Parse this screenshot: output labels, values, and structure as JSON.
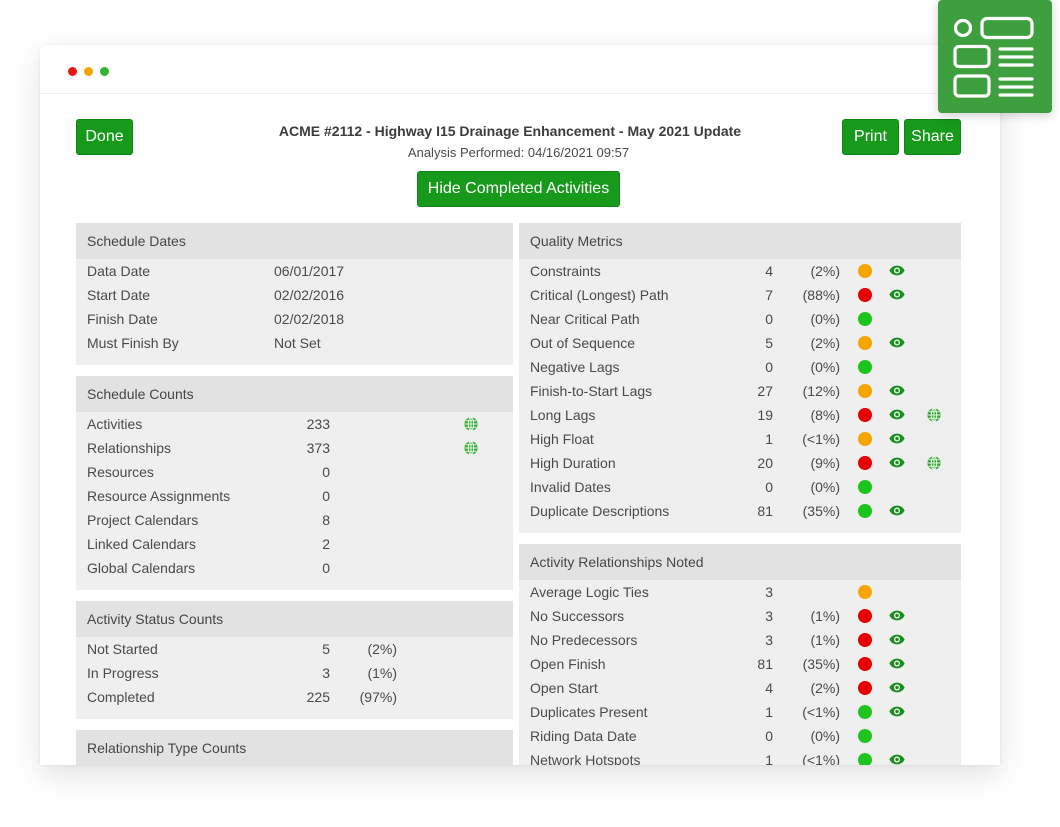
{
  "colors": {
    "accent": "#17991c",
    "accent_border": "#0f8514",
    "badge": "#3d9f3d",
    "panel_header": "#e2e2e2",
    "panel_body": "#efefef",
    "text": "#4a4a4a",
    "eye": "#1c901f",
    "globe": "#2aa82a",
    "traffic_red": "#e8160d",
    "traffic_orange": "#f5a400",
    "traffic_green": "#2fb52f"
  },
  "badge": {
    "icon": "form-list-icon"
  },
  "header": {
    "done_label": "Done",
    "title": "ACME #2112 - Highway I15 Drainage Enhancement - May 2021 Update",
    "subtitle": "Analysis Performed: 04/16/2021 09:57",
    "print_label": "Print",
    "share_label": "Share",
    "hide_completed_label": "Hide Completed Activities"
  },
  "schedule_dates": {
    "title": "Schedule Dates",
    "rows": [
      {
        "label": "Data Date",
        "value": "06/01/2017"
      },
      {
        "label": "Start Date",
        "value": "02/02/2016"
      },
      {
        "label": "Finish Date",
        "value": "02/02/2018"
      },
      {
        "label": "Must Finish By",
        "value": "Not Set"
      }
    ]
  },
  "schedule_counts": {
    "title": "Schedule Counts",
    "rows": [
      {
        "label": "Activities",
        "count": 233,
        "icons": [
          "globe-icon"
        ]
      },
      {
        "label": "Relationships",
        "count": 373,
        "icons": [
          "globe-icon"
        ]
      },
      {
        "label": "Resources",
        "count": 0,
        "icons": []
      },
      {
        "label": "Resource Assignments",
        "count": 0,
        "icons": []
      },
      {
        "label": "Project Calendars",
        "count": 8,
        "icons": []
      },
      {
        "label": "Linked Calendars",
        "count": 2,
        "icons": []
      },
      {
        "label": "Global Calendars",
        "count": 0,
        "icons": []
      }
    ]
  },
  "activity_status_counts": {
    "title": "Activity Status Counts",
    "rows": [
      {
        "label": "Not Started",
        "count": 5,
        "percent": "(2%)"
      },
      {
        "label": "In Progress",
        "count": 3,
        "percent": "(1%)"
      },
      {
        "label": "Completed",
        "count": 225,
        "percent": "(97%)"
      }
    ]
  },
  "relationship_type_counts": {
    "title": "Relationship Type Counts"
  },
  "quality_metrics": {
    "title": "Quality Metrics",
    "rows": [
      {
        "label": "Constraints",
        "count": 4,
        "percent": "(2%)",
        "status_color": "#f7a500",
        "icons": [
          "eye-icon"
        ]
      },
      {
        "label": "Critical (Longest) Path",
        "count": 7,
        "percent": "(88%)",
        "status_color": "#e60000",
        "icons": [
          "eye-icon"
        ]
      },
      {
        "label": "Near Critical Path",
        "count": 0,
        "percent": "(0%)",
        "status_color": "#1ec41e",
        "icons": []
      },
      {
        "label": "Out of Sequence",
        "count": 5,
        "percent": "(2%)",
        "status_color": "#f7a500",
        "icons": [
          "eye-icon"
        ]
      },
      {
        "label": "Negative Lags",
        "count": 0,
        "percent": "(0%)",
        "status_color": "#1ec41e",
        "icons": []
      },
      {
        "label": "Finish-to-Start Lags",
        "count": 27,
        "percent": "(12%)",
        "status_color": "#f7a500",
        "icons": [
          "eye-icon"
        ]
      },
      {
        "label": "Long Lags",
        "count": 19,
        "percent": "(8%)",
        "status_color": "#e60000",
        "icons": [
          "eye-icon",
          "globe-icon"
        ]
      },
      {
        "label": "High Float",
        "count": 1,
        "percent": "(<1%)",
        "status_color": "#f7a500",
        "icons": [
          "eye-icon"
        ]
      },
      {
        "label": "High Duration",
        "count": 20,
        "percent": "(9%)",
        "status_color": "#e60000",
        "icons": [
          "eye-icon",
          "globe-icon"
        ]
      },
      {
        "label": "Invalid Dates",
        "count": 0,
        "percent": "(0%)",
        "status_color": "#1ec41e",
        "icons": []
      },
      {
        "label": "Duplicate Descriptions",
        "count": 81,
        "percent": "(35%)",
        "status_color": "#1ec41e",
        "icons": [
          "eye-icon"
        ]
      }
    ]
  },
  "activity_relationships_noted": {
    "title": "Activity Relationships Noted",
    "rows": [
      {
        "label": "Average Logic Ties",
        "count": 3,
        "status_color": "#f7a500",
        "icons": []
      },
      {
        "label": "No Successors",
        "count": 3,
        "percent": "(1%)",
        "status_color": "#e60000",
        "icons": [
          "eye-icon"
        ]
      },
      {
        "label": "No Predecessors",
        "count": 3,
        "percent": "(1%)",
        "status_color": "#e60000",
        "icons": [
          "eye-icon"
        ]
      },
      {
        "label": "Open Finish",
        "count": 81,
        "percent": "(35%)",
        "status_color": "#e60000",
        "icons": [
          "eye-icon"
        ]
      },
      {
        "label": "Open Start",
        "count": 4,
        "percent": "(2%)",
        "status_color": "#e60000",
        "icons": [
          "eye-icon"
        ]
      },
      {
        "label": "Duplicates Present",
        "count": 1,
        "percent": "(<1%)",
        "status_color": "#1ec41e",
        "icons": [
          "eye-icon"
        ]
      },
      {
        "label": "Riding Data Date",
        "count": 0,
        "percent": "(0%)",
        "status_color": "#1ec41e",
        "icons": []
      },
      {
        "label": "Network Hotspots",
        "count": 1,
        "percent": "(<1%)",
        "status_color": "#1ec41e",
        "icons": [
          "eye-icon"
        ]
      }
    ]
  }
}
